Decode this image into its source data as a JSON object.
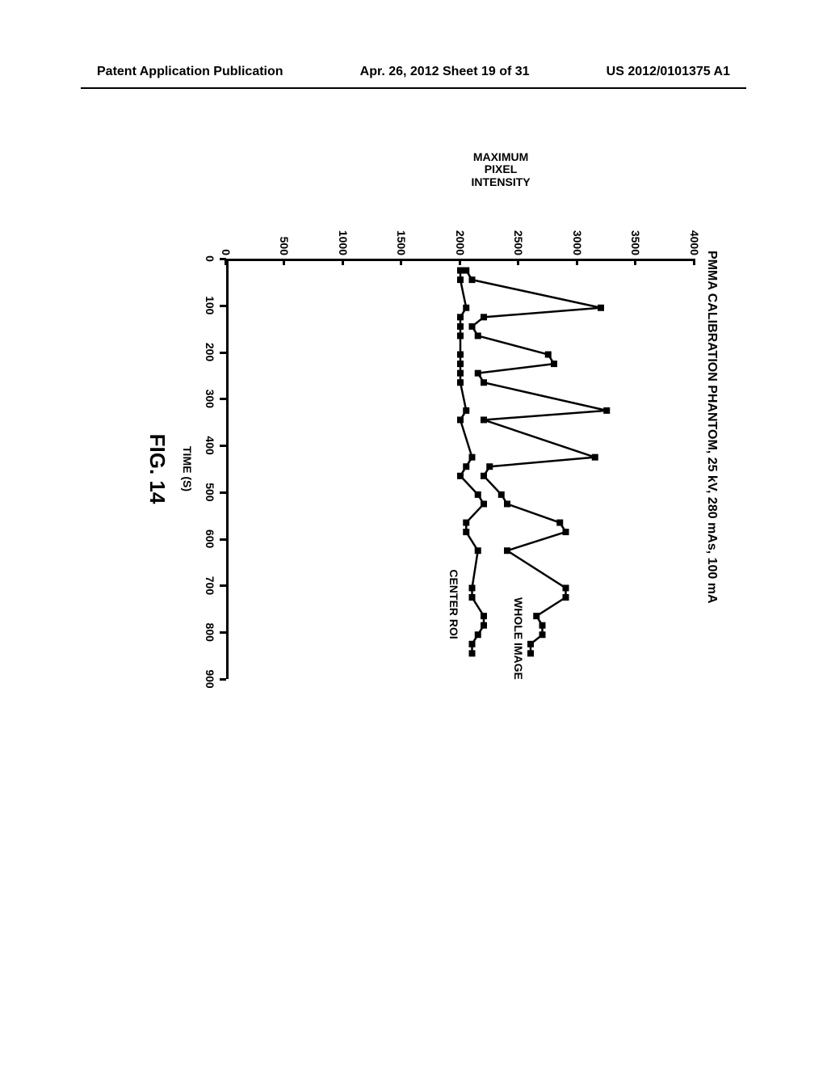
{
  "header": {
    "left": "Patent Application Publication",
    "center": "Apr. 26, 2012  Sheet 19 of 31",
    "right": "US 2012/0101375 A1"
  },
  "figure": {
    "caption": "FIG. 14",
    "chart": {
      "type": "line",
      "title": "PMMA CALIBRATION PHANTOM, 25 kV, 280 mAs, 100 mA",
      "x_label": "TIME (S)",
      "y_label": "MAXIMUM\nPIXEL\nINTENSITY",
      "xlim": [
        0,
        900
      ],
      "ylim": [
        0,
        4000
      ],
      "x_ticks": [
        0,
        100,
        200,
        300,
        400,
        500,
        600,
        700,
        800,
        900
      ],
      "y_ticks": [
        0,
        500,
        1000,
        1500,
        2000,
        2500,
        3000,
        3500,
        4000
      ],
      "background_color": "#ffffff",
      "line_color": "#000000",
      "marker_color": "#000000",
      "marker_size": 7,
      "line_width": 2.5,
      "title_fontsize": 16,
      "label_fontsize": 14,
      "tick_fontsize": 14,
      "series": [
        {
          "name": "WHOLE IMAGE",
          "label_pos_x": 720,
          "label_pos_y": 2550,
          "x": [
            20,
            40,
            100,
            120,
            140,
            160,
            200,
            220,
            240,
            260,
            320,
            340,
            420,
            440,
            460,
            500,
            520,
            560,
            580,
            620,
            700,
            720,
            760,
            780,
            800,
            820,
            840
          ],
          "y": [
            2050,
            2100,
            3200,
            2200,
            2100,
            2150,
            2750,
            2800,
            2150,
            2200,
            3250,
            2200,
            3150,
            2250,
            2200,
            2350,
            2400,
            2850,
            2900,
            2400,
            2900,
            2900,
            2650,
            2700,
            2700,
            2600,
            2600
          ]
        },
        {
          "name": "CENTER ROI",
          "label_pos_x": 660,
          "label_pos_y": 2000,
          "x": [
            20,
            40,
            100,
            120,
            140,
            160,
            200,
            220,
            240,
            260,
            320,
            340,
            420,
            440,
            460,
            500,
            520,
            560,
            580,
            620,
            700,
            720,
            760,
            780,
            800,
            820,
            840
          ],
          "y": [
            2000,
            2000,
            2050,
            2000,
            2000,
            2000,
            2000,
            2000,
            2000,
            2000,
            2050,
            2000,
            2100,
            2050,
            2000,
            2150,
            2200,
            2050,
            2050,
            2150,
            2100,
            2100,
            2200,
            2200,
            2150,
            2100,
            2100
          ]
        }
      ]
    }
  }
}
